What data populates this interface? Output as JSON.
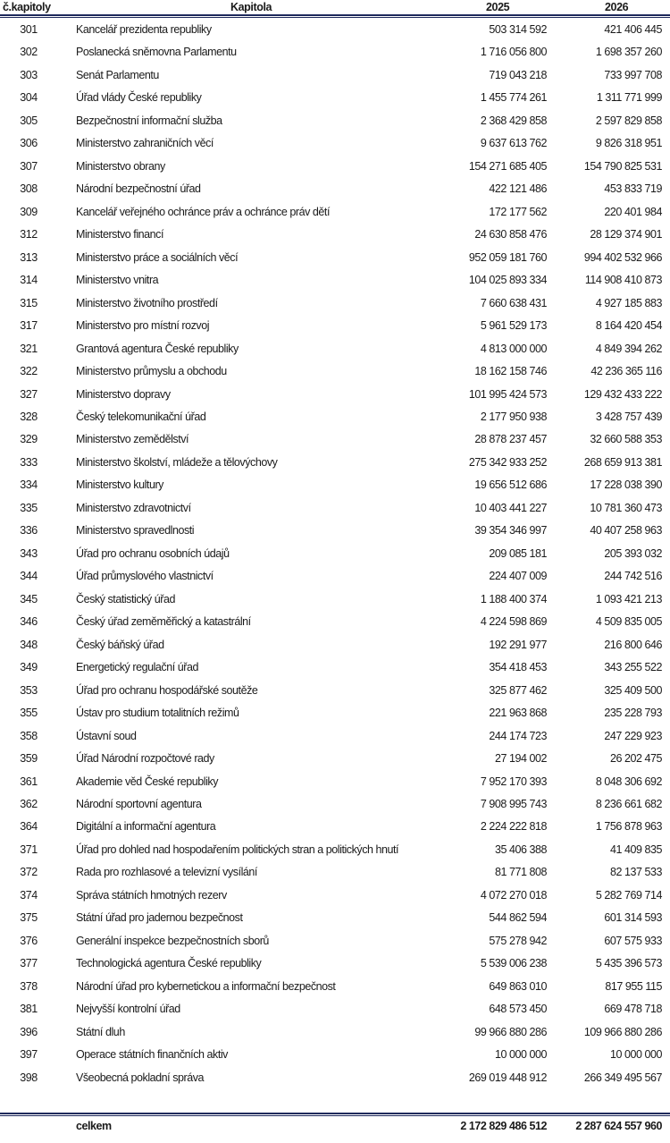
{
  "header": {
    "code": "č.kapitoly",
    "name": "Kapitola",
    "y1": "2025",
    "y2": "2026"
  },
  "rows": [
    {
      "code": "301",
      "name": "Kancelář prezidenta republiky",
      "y1": "503 314 592",
      "y2": "421 406 445"
    },
    {
      "code": "302",
      "name": "Poslanecká sněmovna Parlamentu",
      "y1": "1 716 056 800",
      "y2": "1 698 357 260"
    },
    {
      "code": "303",
      "name": "Senát Parlamentu",
      "y1": "719 043 218",
      "y2": "733 997 708"
    },
    {
      "code": "304",
      "name": "Úřad vlády České republiky",
      "y1": "1 455 774 261",
      "y2": "1 311 771 999"
    },
    {
      "code": "305",
      "name": "Bezpečnostní informační služba",
      "y1": "2 368 429 858",
      "y2": "2 597 829 858"
    },
    {
      "code": "306",
      "name": "Ministerstvo zahraničních věcí",
      "y1": "9 637 613 762",
      "y2": "9 826 318 951"
    },
    {
      "code": "307",
      "name": "Ministerstvo obrany",
      "y1": "154 271 685 405",
      "y2": "154 790 825 531"
    },
    {
      "code": "308",
      "name": "Národní bezpečnostní úřad",
      "y1": "422 121 486",
      "y2": "453 833 719"
    },
    {
      "code": "309",
      "name": "Kancelář veřejného ochránce práv a ochránce práv dětí",
      "y1": "172 177 562",
      "y2": "220 401 984"
    },
    {
      "code": "312",
      "name": "Ministerstvo financí",
      "y1": "24 630 858 476",
      "y2": "28 129 374 901"
    },
    {
      "code": "313",
      "name": "Ministerstvo práce a sociálních věcí",
      "y1": "952 059 181 760",
      "y2": "994 402 532 966"
    },
    {
      "code": "314",
      "name": "Ministerstvo vnitra",
      "y1": "104 025 893 334",
      "y2": "114 908 410 873"
    },
    {
      "code": "315",
      "name": "Ministerstvo životního prostředí",
      "y1": "7 660 638 431",
      "y2": "4 927 185 883"
    },
    {
      "code": "317",
      "name": "Ministerstvo pro místní rozvoj",
      "y1": "5 961 529 173",
      "y2": "8 164 420 454"
    },
    {
      "code": "321",
      "name": "Grantová agentura České republiky",
      "y1": "4 813 000 000",
      "y2": "4 849 394 262"
    },
    {
      "code": "322",
      "name": "Ministerstvo průmyslu a obchodu",
      "y1": "18 162 158 746",
      "y2": "42 236 365 116"
    },
    {
      "code": "327",
      "name": "Ministerstvo dopravy",
      "y1": "101 995 424 573",
      "y2": "129 432 433 222"
    },
    {
      "code": "328",
      "name": "Český telekomunikační úřad",
      "y1": "2 177 950 938",
      "y2": "3 428 757 439"
    },
    {
      "code": "329",
      "name": "Ministerstvo zemědělství",
      "y1": "28 878 237 457",
      "y2": "32 660 588 353"
    },
    {
      "code": "333",
      "name": "Ministerstvo školství, mládeže a tělovýchovy",
      "y1": "275 342 933 252",
      "y2": "268 659 913 381"
    },
    {
      "code": "334",
      "name": "Ministerstvo kultury",
      "y1": "19 656 512 686",
      "y2": "17 228 038 390"
    },
    {
      "code": "335",
      "name": "Ministerstvo zdravotnictví",
      "y1": "10 403 441 227",
      "y2": "10 781 360 473"
    },
    {
      "code": "336",
      "name": "Ministerstvo spravedlnosti",
      "y1": "39 354 346 997",
      "y2": "40 407 258 963"
    },
    {
      "code": "343",
      "name": "Úřad pro ochranu osobních údajů",
      "y1": "209 085 181",
      "y2": "205 393 032"
    },
    {
      "code": "344",
      "name": "Úřad průmyslového vlastnictví",
      "y1": "224 407 009",
      "y2": "244 742 516"
    },
    {
      "code": "345",
      "name": "Český statistický úřad",
      "y1": "1 188 400 374",
      "y2": "1 093 421 213"
    },
    {
      "code": "346",
      "name": "Český úřad zeměměřický a katastrální",
      "y1": "4 224 598 869",
      "y2": "4 509 835 005"
    },
    {
      "code": "348",
      "name": "Český báňský úřad",
      "y1": "192 291 977",
      "y2": "216 800 646"
    },
    {
      "code": "349",
      "name": "Energetický regulační úřad",
      "y1": "354 418 453",
      "y2": "343 255 522"
    },
    {
      "code": "353",
      "name": "Úřad pro ochranu hospodářské soutěže",
      "y1": "325 877 462",
      "y2": "325 409 500"
    },
    {
      "code": "355",
      "name": "Ústav pro studium totalitních režimů",
      "y1": "221 963 868",
      "y2": "235 228 793"
    },
    {
      "code": "358",
      "name": "Ústavní soud",
      "y1": "244 174 723",
      "y2": "247 229 923"
    },
    {
      "code": "359",
      "name": "Úřad Národní rozpočtové rady",
      "y1": "27 194 002",
      "y2": "26 202 475"
    },
    {
      "code": "361",
      "name": "Akademie věd České republiky",
      "y1": "7 952 170 393",
      "y2": "8 048 306 692"
    },
    {
      "code": "362",
      "name": "Národní sportovní agentura",
      "y1": "7 908 995 743",
      "y2": "8 236 661 682"
    },
    {
      "code": "364",
      "name": "Digitální a informační agentura",
      "y1": "2 224 222 818",
      "y2": "1 756 878 963"
    },
    {
      "code": "371",
      "name": "Úřad pro dohled nad hospodařením politických stran a politických hnutí",
      "y1": "35 406 388",
      "y2": "41 409 835"
    },
    {
      "code": "372",
      "name": "Rada pro rozhlasové a televizní vysílání",
      "y1": "81 771 808",
      "y2": "82 137 533"
    },
    {
      "code": "374",
      "name": "Správa státních hmotných rezerv",
      "y1": "4 072 270 018",
      "y2": "5 282 769 714"
    },
    {
      "code": "375",
      "name": "Státní úřad pro jadernou bezpečnost",
      "y1": "544 862 594",
      "y2": "601 314 593"
    },
    {
      "code": "376",
      "name": "Generální inspekce bezpečnostních sborů",
      "y1": "575 278 942",
      "y2": "607 575 933"
    },
    {
      "code": "377",
      "name": "Technologická agentura České republiky",
      "y1": "5 539 006 238",
      "y2": "5 435 396 573"
    },
    {
      "code": "378",
      "name": "Národní úřad pro kybernetickou a informační bezpečnost",
      "y1": "649 863 010",
      "y2": "817 955 115"
    },
    {
      "code": "381",
      "name": "Nejvyšší kontrolní úřad",
      "y1": "648 573 450",
      "y2": "669 478 718"
    },
    {
      "code": "396",
      "name": "Státní dluh",
      "y1": "99 966 880 286",
      "y2": "109 966 880 286"
    },
    {
      "code": "397",
      "name": "Operace státních finančních aktiv",
      "y1": "10 000 000",
      "y2": "10 000 000"
    },
    {
      "code": "398",
      "name": "Všeobecná pokladní správa",
      "y1": "269 019 448 912",
      "y2": "266 349 495 567"
    }
  ],
  "total": {
    "name": "celkem",
    "y1": "2 172 829 486 512",
    "y2": "2 287 624 557 960"
  },
  "colors": {
    "rule": "#1f2a5c"
  }
}
